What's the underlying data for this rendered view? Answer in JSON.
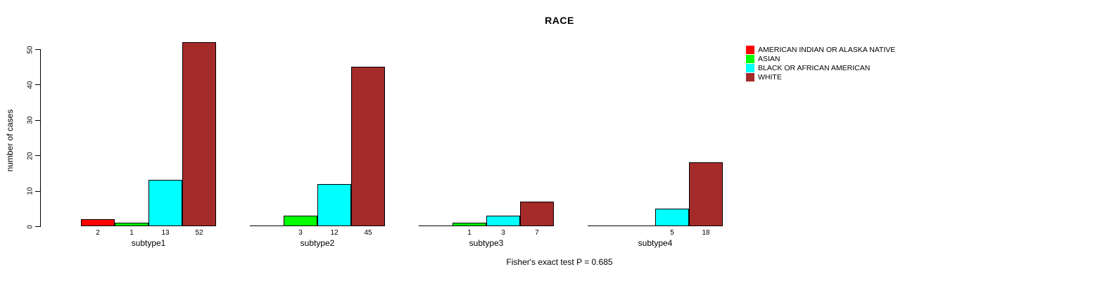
{
  "title": "RACE",
  "footer": "Fisher's exact test P = 0.685",
  "y_axis": {
    "label": "number of cases"
  },
  "colors": {
    "background": "#FFFFFF",
    "axis": "#000000"
  },
  "chart_data": {
    "type": "bar",
    "title": "RACE",
    "categories": [
      "subtype1",
      "subtype2",
      "subtype3",
      "subtype4"
    ],
    "series": [
      {
        "name": "AMERICAN INDIAN OR ALASKA NATIVE",
        "color": "#FF0000",
        "values": [
          2,
          0,
          0,
          0
        ]
      },
      {
        "name": "ASIAN",
        "color": "#00FF00",
        "values": [
          1,
          3,
          1,
          0
        ]
      },
      {
        "name": "BLACK OR AFRICAN AMERICAN",
        "color": "#00FFFF",
        "values": [
          13,
          12,
          3,
          5
        ]
      },
      {
        "name": "WHITE",
        "color": "#A52A2A",
        "values": [
          52,
          45,
          7,
          18
        ]
      }
    ],
    "xlabel": "",
    "ylabel": "number of cases",
    "yticks": [
      0,
      10,
      20,
      30,
      40,
      50
    ],
    "ylim": [
      0,
      52
    ],
    "bar_value_labels": true,
    "zero_values_unlabeled": true,
    "legend_position": "top-right",
    "grid": false,
    "annotation": "Fisher's exact test P = 0.685"
  }
}
